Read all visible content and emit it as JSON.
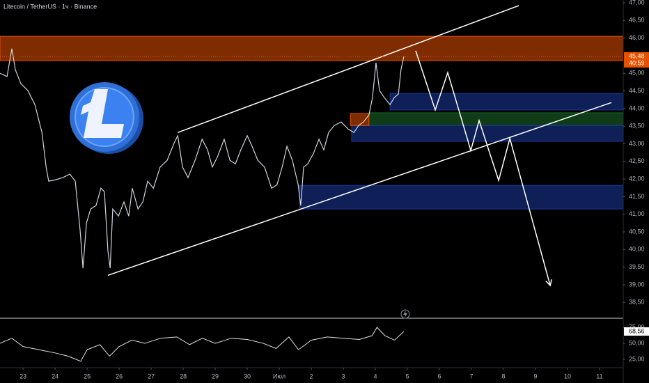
{
  "chart_data": {
    "type": "line",
    "title": "Litecoin / TetherUS · 1ч · Binance",
    "color": "#d1d4dc",
    "x": [
      -0.72,
      -0.5,
      -0.35,
      -0.24,
      -0.07,
      0.15,
      0.37,
      0.59,
      0.72,
      0.8,
      1.02,
      1.24,
      1.46,
      1.63,
      1.78,
      1.87,
      1.98,
      2.11,
      2.28,
      2.43,
      2.54,
      2.65,
      2.72,
      2.8,
      2.98,
      3.15,
      3.3,
      3.41,
      3.59,
      3.74,
      3.89,
      4.07,
      4.28,
      4.5,
      4.72,
      4.83,
      4.98,
      5.15,
      5.37,
      5.59,
      5.76,
      5.91,
      6.07,
      6.28,
      6.46,
      6.63,
      6.8,
      7.0,
      7.15,
      7.33,
      7.54,
      7.76,
      7.93,
      8.09,
      8.24,
      8.41,
      8.59,
      8.67,
      8.76,
      8.89,
      9.07,
      9.24,
      9.39,
      9.54,
      9.72,
      9.93,
      10.15,
      10.33,
      10.48,
      10.63,
      10.8,
      10.91,
      11.02,
      11.13,
      11.28,
      11.46,
      11.59,
      11.72,
      11.8,
      11.89
    ],
    "values": [
      45.0,
      44.91,
      45.7,
      45.1,
      44.71,
      44.51,
      44.11,
      43.32,
      42.34,
      41.94,
      41.98,
      42.04,
      42.14,
      41.94,
      40.56,
      39.47,
      40.75,
      41.15,
      41.25,
      41.74,
      41.64,
      39.96,
      39.47,
      41.15,
      40.95,
      41.35,
      40.95,
      41.74,
      41.15,
      41.35,
      41.94,
      41.74,
      42.34,
      42.53,
      43.03,
      43.23,
      42.34,
      42.04,
      42.53,
      43.13,
      42.83,
      42.34,
      42.63,
      43.13,
      42.53,
      42.43,
      42.83,
      43.23,
      42.93,
      42.53,
      42.34,
      41.74,
      41.84,
      42.34,
      42.93,
      42.53,
      41.84,
      41.25,
      42.34,
      42.43,
      42.73,
      43.13,
      42.83,
      43.32,
      43.52,
      43.62,
      43.42,
      43.32,
      43.52,
      43.62,
      43.82,
      44.31,
      45.3,
      44.51,
      44.31,
      44.11,
      44.31,
      44.41,
      45.1,
      45.48
    ],
    "current": {
      "value": 45.48,
      "label": "45,48",
      "countdown": "40:59"
    },
    "xlim": [
      -0.72,
      18.74
    ],
    "ylim": [
      38.09,
      47.08
    ],
    "xticks": [
      {
        "value": 0,
        "label": "23"
      },
      {
        "value": 1,
        "label": "24"
      },
      {
        "value": 2,
        "label": "25"
      },
      {
        "value": 3,
        "label": "26"
      },
      {
        "value": 4,
        "label": "27"
      },
      {
        "value": 5,
        "label": "28"
      },
      {
        "value": 6,
        "label": "29"
      },
      {
        "value": 7,
        "label": "30"
      },
      {
        "value": 8,
        "label": "Июл"
      },
      {
        "value": 9,
        "label": "2"
      },
      {
        "value": 10,
        "label": "3"
      },
      {
        "value": 11,
        "label": "4"
      },
      {
        "value": 12,
        "label": "5"
      },
      {
        "value": 13,
        "label": "6"
      },
      {
        "value": 14,
        "label": "7"
      },
      {
        "value": 15,
        "label": "8"
      },
      {
        "value": 16,
        "label": "9"
      },
      {
        "value": 17,
        "label": "10"
      },
      {
        "value": 18,
        "label": "11"
      }
    ],
    "yticks": [
      {
        "value": 47,
        "label": "47,00"
      },
      {
        "value": 46.5,
        "label": "46,50"
      },
      {
        "value": 46,
        "label": "46,00"
      },
      {
        "value": 45,
        "label": "45,00"
      },
      {
        "value": 44.5,
        "label": "44,50"
      },
      {
        "value": 44,
        "label": "44,00"
      },
      {
        "value": 43.5,
        "label": "43,50"
      },
      {
        "value": 43,
        "label": "43,00"
      },
      {
        "value": 42.5,
        "label": "42,50"
      },
      {
        "value": 42,
        "label": "42,00"
      },
      {
        "value": 41.5,
        "label": "41,50"
      },
      {
        "value": 41,
        "label": "41,00"
      },
      {
        "value": 40.5,
        "label": "40,50"
      },
      {
        "value": 40,
        "label": "40,00"
      },
      {
        "value": 39.5,
        "label": "39,50"
      },
      {
        "value": 39,
        "label": "39,00"
      },
      {
        "value": 38.5,
        "label": "38,50"
      }
    ],
    "zones": [
      {
        "range": [
          45.36,
          46.05
        ],
        "x": [
          -0.72,
          18.74
        ],
        "color": "#e65100"
      },
      {
        "range": [
          43.96,
          44.43
        ],
        "x": [
          11.46,
          18.74
        ],
        "color": "#1a3a9e"
      },
      {
        "range": [
          43.52,
          43.88
        ],
        "x": [
          10.8,
          18.74
        ],
        "color": "#1b6b2a"
      },
      {
        "range": [
          43.07,
          43.52
        ],
        "x": [
          10.26,
          18.74
        ],
        "color": "#1a3a9e"
      },
      {
        "range": [
          43.52,
          43.86
        ],
        "x": [
          10.22,
          10.8
        ],
        "color": "#e65100"
      },
      {
        "range": [
          41.15,
          41.82
        ],
        "x": [
          8.63,
          18.74
        ],
        "color": "#1a3a9e"
      }
    ],
    "channel": [
      {
        "x": [
          4.83,
          15.48
        ],
        "y": [
          43.32,
          46.92
        ]
      },
      {
        "x": [
          2.65,
          18.37
        ],
        "y": [
          39.27,
          44.17
        ]
      }
    ],
    "projection": {
      "x": [
        12.26,
        12.87,
        13.26,
        13.98,
        14.24,
        14.85,
        15.2,
        16.46
      ],
      "y": [
        45.64,
        43.96,
        45.02,
        42.81,
        43.66,
        41.96,
        43.15,
        38.98
      ]
    },
    "rsi": {
      "x": [
        -0.72,
        -0.35,
        0,
        0.5,
        1,
        1.4,
        1.8,
        2.0,
        2.4,
        2.7,
        3.0,
        3.4,
        3.8,
        4.3,
        4.8,
        5.2,
        5.6,
        6.0,
        6.5,
        7.0,
        7.5,
        7.9,
        8.3,
        8.6,
        9.0,
        9.5,
        10.0,
        10.5,
        10.9,
        11.05,
        11.3,
        11.6,
        11.89
      ],
      "values": [
        50,
        58,
        45,
        40,
        35,
        30,
        22,
        40,
        48,
        30,
        45,
        55,
        50,
        58,
        60,
        48,
        58,
        50,
        58,
        56,
        50,
        42,
        60,
        40,
        55,
        60,
        58,
        56,
        62,
        75,
        62,
        55,
        68.56
      ],
      "current": {
        "value": 68.56,
        "label": "68,56"
      },
      "ylim": [
        13,
        86
      ],
      "yticks": [
        {
          "value": 75,
          "label": "75,00"
        },
        {
          "value": 50,
          "label": "50,00"
        },
        {
          "value": 25,
          "label": "25,00"
        }
      ]
    }
  }
}
